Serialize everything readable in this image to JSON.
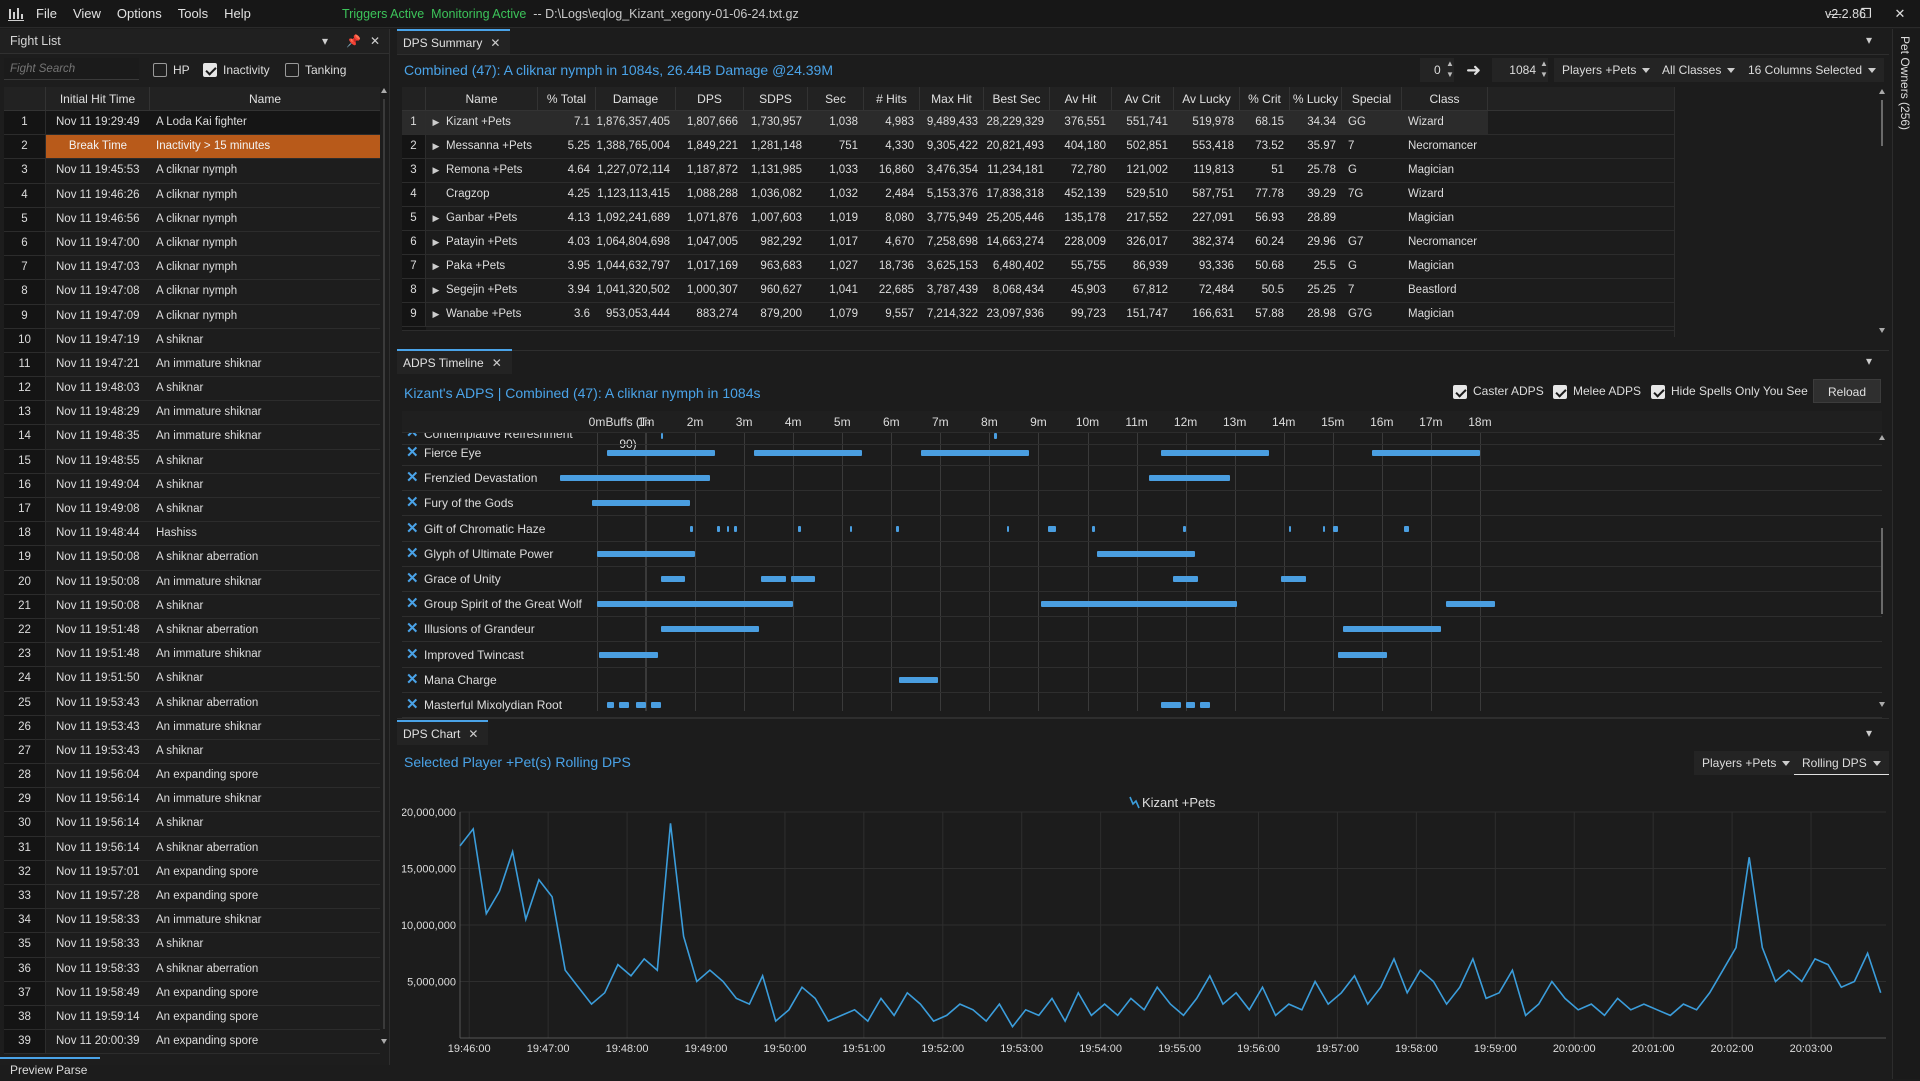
{
  "app": {
    "menu": [
      "File",
      "View",
      "Options",
      "Tools",
      "Help"
    ],
    "status_triggers": "Triggers Active",
    "status_monitoring": "Monitoring Active",
    "status_file": "-- D:\\Logs\\eqlog_Kizant_xegony-01-06-24.txt.gz",
    "version": "v2.2.86",
    "pet_owners_tab": "Pet Owners (256)",
    "preview_parse": "Preview Parse"
  },
  "fight_list": {
    "title": "Fight List",
    "search_placeholder": "Fight Search",
    "filters": [
      {
        "label": "HP",
        "checked": false
      },
      {
        "label": "Inactivity",
        "checked": true
      },
      {
        "label": "Tanking",
        "checked": false
      }
    ],
    "columns": [
      "Initial Hit Time",
      "Name"
    ],
    "rows": [
      {
        "n": "1",
        "time": "Nov 11 19:29:49",
        "name": "A Loda Kai fighter"
      },
      {
        "n": "2",
        "time": "Break Time",
        "name": "Inactivity > 15 minutes",
        "break": true
      },
      {
        "n": "3",
        "time": "Nov 11 19:45:53",
        "name": "A cliknar nymph"
      },
      {
        "n": "4",
        "time": "Nov 11 19:46:26",
        "name": "A cliknar nymph"
      },
      {
        "n": "5",
        "time": "Nov 11 19:46:56",
        "name": "A cliknar nymph"
      },
      {
        "n": "6",
        "time": "Nov 11 19:47:00",
        "name": "A cliknar nymph"
      },
      {
        "n": "7",
        "time": "Nov 11 19:47:03",
        "name": "A cliknar nymph"
      },
      {
        "n": "8",
        "time": "Nov 11 19:47:08",
        "name": "A cliknar nymph"
      },
      {
        "n": "9",
        "time": "Nov 11 19:47:09",
        "name": "A cliknar nymph"
      },
      {
        "n": "10",
        "time": "Nov 11 19:47:19",
        "name": "A shiknar"
      },
      {
        "n": "11",
        "time": "Nov 11 19:47:21",
        "name": "An immature shiknar"
      },
      {
        "n": "12",
        "time": "Nov 11 19:48:03",
        "name": "A shiknar"
      },
      {
        "n": "13",
        "time": "Nov 11 19:48:29",
        "name": "An immature shiknar"
      },
      {
        "n": "14",
        "time": "Nov 11 19:48:35",
        "name": "An immature shiknar"
      },
      {
        "n": "15",
        "time": "Nov 11 19:48:55",
        "name": "A shiknar"
      },
      {
        "n": "16",
        "time": "Nov 11 19:49:04",
        "name": "A shiknar"
      },
      {
        "n": "17",
        "time": "Nov 11 19:49:08",
        "name": "A shiknar"
      },
      {
        "n": "18",
        "time": "Nov 11 19:48:44",
        "name": "Hashiss"
      },
      {
        "n": "19",
        "time": "Nov 11 19:50:08",
        "name": "A shiknar aberration"
      },
      {
        "n": "20",
        "time": "Nov 11 19:50:08",
        "name": "An immature shiknar"
      },
      {
        "n": "21",
        "time": "Nov 11 19:50:08",
        "name": "A shiknar"
      },
      {
        "n": "22",
        "time": "Nov 11 19:51:48",
        "name": "A shiknar aberration"
      },
      {
        "n": "23",
        "time": "Nov 11 19:51:48",
        "name": "An immature shiknar"
      },
      {
        "n": "24",
        "time": "Nov 11 19:51:50",
        "name": "A shiknar"
      },
      {
        "n": "25",
        "time": "Nov 11 19:53:43",
        "name": "A shiknar aberration"
      },
      {
        "n": "26",
        "time": "Nov 11 19:53:43",
        "name": "An immature shiknar"
      },
      {
        "n": "27",
        "time": "Nov 11 19:53:43",
        "name": "A shiknar"
      },
      {
        "n": "28",
        "time": "Nov 11 19:56:04",
        "name": "An expanding spore"
      },
      {
        "n": "29",
        "time": "Nov 11 19:56:14",
        "name": "An immature shiknar"
      },
      {
        "n": "30",
        "time": "Nov 11 19:56:14",
        "name": "A shiknar"
      },
      {
        "n": "31",
        "time": "Nov 11 19:56:14",
        "name": "A shiknar aberration"
      },
      {
        "n": "32",
        "time": "Nov 11 19:57:01",
        "name": "An expanding spore"
      },
      {
        "n": "33",
        "time": "Nov 11 19:57:28",
        "name": "An expanding spore"
      },
      {
        "n": "34",
        "time": "Nov 11 19:58:33",
        "name": "An immature shiknar"
      },
      {
        "n": "35",
        "time": "Nov 11 19:58:33",
        "name": "A shiknar"
      },
      {
        "n": "36",
        "time": "Nov 11 19:58:33",
        "name": "A shiknar aberration"
      },
      {
        "n": "37",
        "time": "Nov 11 19:58:49",
        "name": "An expanding spore"
      },
      {
        "n": "38",
        "time": "Nov 11 19:59:14",
        "name": "An expanding spore"
      },
      {
        "n": "39",
        "time": "Nov 11 20:00:39",
        "name": "An expanding spore"
      }
    ]
  },
  "dps_summary": {
    "tab": "DPS Summary",
    "title": "Combined (47): A cliknar nymph in 1084s, 26.44B Damage @24.39M",
    "range_start": "0",
    "range_end": "1084",
    "dropdowns": [
      "Players +Pets",
      "All Classes",
      "16 Columns Selected"
    ],
    "columns": [
      "Name",
      "% Total",
      "Damage",
      "DPS",
      "SDPS",
      "Sec",
      "# Hits",
      "Max Hit",
      "Best Sec",
      "Av Hit",
      "Av Crit",
      "Av Lucky",
      "% Crit",
      "% Lucky",
      "Special",
      "Class"
    ],
    "rows": [
      [
        "1",
        "Kizant +Pets",
        "7.1",
        "1,876,357,405",
        "1,807,666",
        "1,730,957",
        "1,038",
        "4,983",
        "9,489,433",
        "28,229,329",
        "376,551",
        "551,741",
        "519,978",
        "68.15",
        "34.34",
        "GG",
        "Wizard"
      ],
      [
        "2",
        "Messanna +Pets",
        "5.25",
        "1,388,765,004",
        "1,849,221",
        "1,281,148",
        "751",
        "4,330",
        "9,305,422",
        "20,821,493",
        "404,180",
        "502,851",
        "553,418",
        "73.52",
        "35.97",
        "7",
        "Necromancer"
      ],
      [
        "3",
        "Remona +Pets",
        "4.64",
        "1,227,072,114",
        "1,187,872",
        "1,131,985",
        "1,033",
        "16,860",
        "3,476,354",
        "11,234,181",
        "72,780",
        "121,002",
        "119,813",
        "51",
        "25.78",
        "G",
        "Magician"
      ],
      [
        "4",
        "Cragzop",
        "4.25",
        "1,123,113,415",
        "1,088,288",
        "1,036,082",
        "1,032",
        "2,484",
        "5,153,376",
        "17,838,318",
        "452,139",
        "529,510",
        "587,751",
        "77.78",
        "39.29",
        "7G",
        "Wizard"
      ],
      [
        "5",
        "Ganbar +Pets",
        "4.13",
        "1,092,241,689",
        "1,071,876",
        "1,007,603",
        "1,019",
        "8,080",
        "3,775,949",
        "25,205,446",
        "135,178",
        "217,552",
        "227,091",
        "56.93",
        "28.89",
        "",
        "Magician"
      ],
      [
        "6",
        "Patayin +Pets",
        "4.03",
        "1,064,804,698",
        "1,047,005",
        "982,292",
        "1,017",
        "4,670",
        "7,258,698",
        "14,663,274",
        "228,009",
        "326,017",
        "382,374",
        "60.24",
        "29.96",
        "G7",
        "Necromancer"
      ],
      [
        "7",
        "Paka +Pets",
        "3.95",
        "1,044,632,797",
        "1,017,169",
        "963,683",
        "1,027",
        "18,736",
        "3,625,153",
        "6,480,402",
        "55,755",
        "86,939",
        "93,336",
        "50.68",
        "25.5",
        "G",
        "Magician"
      ],
      [
        "8",
        "Segejin +Pets",
        "3.94",
        "1,041,320,502",
        "1,000,307",
        "960,627",
        "1,041",
        "22,685",
        "3,787,439",
        "8,068,434",
        "45,903",
        "67,812",
        "72,484",
        "50.5",
        "25.25",
        "7",
        "Beastlord"
      ],
      [
        "9",
        "Wanabe +Pets",
        "3.6",
        "953,053,444",
        "883,274",
        "879,200",
        "1,079",
        "9,557",
        "7,214,322",
        "23,097,936",
        "99,723",
        "151,747",
        "166,631",
        "57.88",
        "28.98",
        "G7G",
        "Magician"
      ]
    ]
  },
  "adps": {
    "tab": "ADPS Timeline",
    "title": "Kizant's ADPS | Combined (47): A cliknar nymph in 1084s",
    "options": [
      {
        "label": "Caster ADPS",
        "checked": true
      },
      {
        "label": "Melee ADPS",
        "checked": true
      },
      {
        "label": "Hide Spells Only You See",
        "checked": true
      }
    ],
    "reload": "Reload",
    "buffs_label": "Buffs (T-90)",
    "ticks": [
      "0m",
      "1m",
      "2m",
      "3m",
      "4m",
      "5m",
      "6m",
      "7m",
      "8m",
      "9m",
      "10m",
      "11m",
      "12m",
      "13m",
      "14m",
      "15m",
      "16m",
      "17m",
      "18m"
    ],
    "spells": [
      {
        "name": "Contemplative Refreshment",
        "bars": [
          [
            1.3,
            1.35
          ],
          [
            8.1,
            8.15
          ]
        ]
      },
      {
        "name": "Fierce Eye",
        "bars": [
          [
            0.2,
            2.4
          ],
          [
            3.2,
            5.4
          ],
          [
            6.6,
            8.8
          ],
          [
            11.5,
            13.7
          ],
          [
            15.8,
            18
          ]
        ]
      },
      {
        "name": "Frenzied Devastation",
        "bars": [
          [
            -0.75,
            2.3
          ],
          [
            11.25,
            12.9
          ]
        ]
      },
      {
        "name": "Fury of the Gods",
        "bars": [
          [
            -0.1,
            1.9
          ]
        ]
      },
      {
        "name": "Gift of Chromatic Haze",
        "bars": [
          [
            1.9,
            1.95
          ],
          [
            2.45,
            2.5
          ],
          [
            2.65,
            2.7
          ],
          [
            2.8,
            2.85
          ],
          [
            4.1,
            4.15
          ],
          [
            5.15,
            5.2
          ],
          [
            6.1,
            6.15
          ],
          [
            8.35,
            8.4
          ],
          [
            9.2,
            9.35
          ],
          [
            10.1,
            10.15
          ],
          [
            11.95,
            12
          ],
          [
            14.1,
            14.15
          ],
          [
            14.8,
            14.85
          ],
          [
            15,
            15.1
          ],
          [
            16.45,
            16.55
          ]
        ]
      },
      {
        "name": "Glyph of Ultimate Power",
        "bars": [
          [
            0,
            2
          ],
          [
            10.2,
            12.2
          ]
        ]
      },
      {
        "name": "Grace of Unity",
        "bars": [
          [
            1.3,
            1.8
          ],
          [
            3.35,
            3.85
          ],
          [
            3.95,
            4.45
          ],
          [
            11.75,
            12.25
          ],
          [
            13.95,
            14.45
          ]
        ]
      },
      {
        "name": "Group Spirit of the Great Wolf",
        "bars": [
          [
            0,
            4
          ],
          [
            9.05,
            13.05
          ],
          [
            17.3,
            18.3
          ]
        ]
      },
      {
        "name": "Illusions of Grandeur",
        "bars": [
          [
            1.3,
            3.3
          ],
          [
            15.2,
            17.2
          ]
        ]
      },
      {
        "name": "Improved Twincast",
        "bars": [
          [
            0.05,
            1.25
          ],
          [
            15.1,
            16.1
          ]
        ]
      },
      {
        "name": "Mana Charge",
        "bars": [
          [
            6.15,
            6.95
          ]
        ]
      },
      {
        "name": "Masterful Mixolydian Root",
        "bars": [
          [
            0.2,
            0.35
          ],
          [
            0.45,
            0.65
          ],
          [
            0.8,
            1
          ],
          [
            1.1,
            1.3
          ],
          [
            11.5,
            11.9
          ],
          [
            12,
            12.2
          ],
          [
            12.3,
            12.5
          ]
        ]
      }
    ]
  },
  "dps_chart": {
    "tab": "DPS Chart",
    "title": "Selected Player +Pet(s) Rolling DPS",
    "dropdowns": [
      "Players +Pets",
      "Rolling DPS"
    ],
    "color": "#3b9ddb"
  },
  "chart_data": {
    "type": "line",
    "title": "",
    "xlabel": "",
    "ylabel": "",
    "ylim": [
      0,
      20000000
    ],
    "yticks": [
      "20,000,000",
      "15,000,000",
      "10,000,000",
      "5,000,000"
    ],
    "xticks": [
      "19:46:00",
      "19:47:00",
      "19:48:00",
      "19:49:00",
      "19:50:00",
      "19:51:00",
      "19:52:00",
      "19:53:00",
      "19:54:00",
      "19:55:00",
      "19:56:00",
      "19:57:00",
      "19:58:00",
      "19:59:00",
      "20:00:00",
      "20:01:00",
      "20:02:00",
      "20:03:00"
    ],
    "series": [
      {
        "name": "Kizant +Pets",
        "x_seconds_from_19_45_53": [
          0,
          10,
          20,
          30,
          40,
          50,
          60,
          70,
          80,
          90,
          100,
          110,
          120,
          130,
          140,
          150,
          160,
          170,
          180,
          190,
          200,
          210,
          220,
          230,
          240,
          250,
          260,
          270,
          280,
          290,
          300,
          310,
          320,
          330,
          340,
          350,
          360,
          370,
          380,
          390,
          400,
          410,
          420,
          430,
          440,
          450,
          460,
          470,
          480,
          490,
          500,
          510,
          520,
          530,
          540,
          550,
          560,
          570,
          580,
          590,
          600,
          610,
          620,
          630,
          640,
          650,
          660,
          670,
          680,
          690,
          700,
          710,
          720,
          730,
          740,
          750,
          760,
          770,
          780,
          790,
          800,
          810,
          820,
          830,
          840,
          850,
          860,
          870,
          880,
          890,
          900,
          910,
          920,
          930,
          940,
          950,
          960,
          970,
          980,
          990,
          1000,
          1010,
          1020,
          1030,
          1040,
          1050,
          1060,
          1070,
          1080
        ],
        "values": [
          17000000,
          18500000,
          11000000,
          13000000,
          16500000,
          10500000,
          14000000,
          12500000,
          6000000,
          4500000,
          3000000,
          4000000,
          6500000,
          5500000,
          7000000,
          6000000,
          19000000,
          9000000,
          5000000,
          6000000,
          5000000,
          3500000,
          3000000,
          5500000,
          1500000,
          2500000,
          4500000,
          3500000,
          1500000,
          2000000,
          2500000,
          1500000,
          3500000,
          2000000,
          4000000,
          3000000,
          1500000,
          2000000,
          3000000,
          2500000,
          1500000,
          3000000,
          1000000,
          2500000,
          2000000,
          3500000,
          1500000,
          4000000,
          2000000,
          3000000,
          2000000,
          3500000,
          2500000,
          4500000,
          3000000,
          2000000,
          3500000,
          5500000,
          3000000,
          4000000,
          2500000,
          4500000,
          2000000,
          3000000,
          2500000,
          5000000,
          3000000,
          4000000,
          5500000,
          3000000,
          4500000,
          7000000,
          4000000,
          6000000,
          5000000,
          3000000,
          4500000,
          7000000,
          3500000,
          4000000,
          6000000,
          2000000,
          3000000,
          5000000,
          3500000,
          2500000,
          3000000,
          2000000,
          3500000,
          2500000,
          3000000,
          2500000,
          2000000,
          3000000,
          2500000,
          4000000,
          6000000,
          8000000,
          16000000,
          8000000,
          5000000,
          6000000,
          5000000,
          7000000,
          6500000,
          4500000,
          5000000,
          7500000,
          4000000
        ]
      }
    ]
  }
}
